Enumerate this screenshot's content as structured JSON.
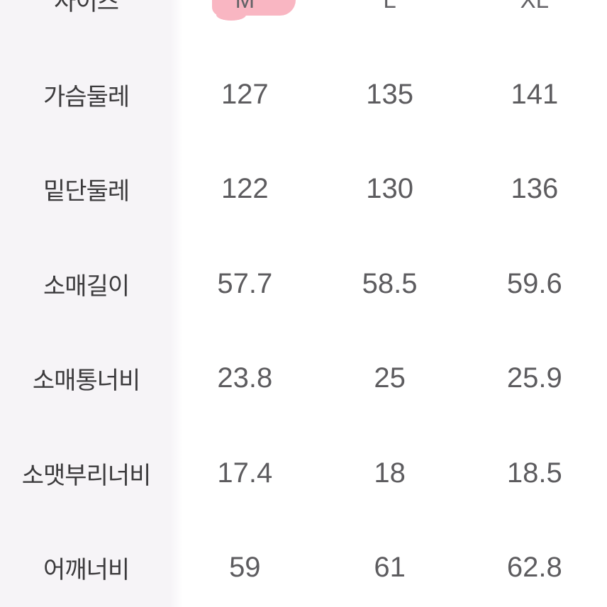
{
  "table": {
    "header": {
      "label": "사이즈",
      "sizes": [
        "M",
        "L",
        "XL"
      ],
      "highlighted_size": "M"
    },
    "rows": [
      {
        "label": "가슴둘레",
        "values": [
          "127",
          "135",
          "141"
        ]
      },
      {
        "label": "밑단둘레",
        "values": [
          "122",
          "130",
          "136"
        ]
      },
      {
        "label": "소매길이",
        "values": [
          "57.7",
          "58.5",
          "59.6"
        ]
      },
      {
        "label": "소매통너비",
        "values": [
          "23.8",
          "25",
          "25.9"
        ]
      },
      {
        "label": "소맷부리너비",
        "values": [
          "17.4",
          "18",
          "18.5"
        ]
      },
      {
        "label": "어깨너비",
        "values": [
          "59",
          "61",
          "62.8"
        ]
      }
    ]
  },
  "colors": {
    "label_column_bg": "#f6f4f7",
    "body_bg": "#ffffff",
    "label_text": "#3c3b3d",
    "value_text": "#5d5c5f",
    "header_text": "#636266",
    "highlight_pink": "#f9b6c2"
  }
}
